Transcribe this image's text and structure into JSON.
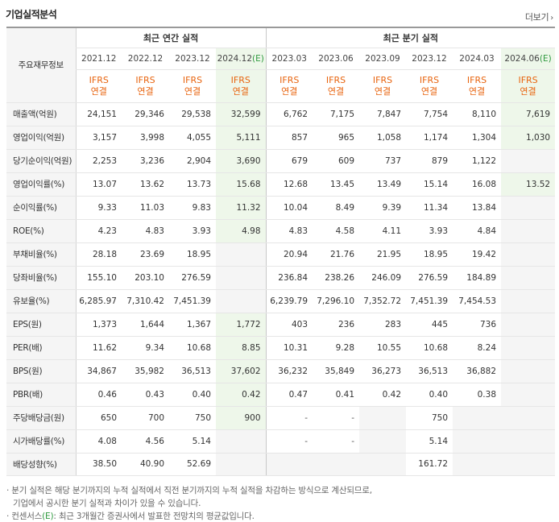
{
  "header": {
    "title": "기업실적분석",
    "more_label": "더보기"
  },
  "table": {
    "corner_label": "주요재무정보",
    "annual_group": "최근 연간 실적",
    "quarter_group": "최근 분기 실적",
    "columns": [
      {
        "year": "2021.12",
        "est": ""
      },
      {
        "year": "2022.12",
        "est": ""
      },
      {
        "year": "2023.12",
        "est": ""
      },
      {
        "year": "2024.12",
        "est": "(E)"
      },
      {
        "year": "2023.03",
        "est": ""
      },
      {
        "year": "2023.06",
        "est": ""
      },
      {
        "year": "2023.09",
        "est": ""
      },
      {
        "year": "2023.12",
        "est": ""
      },
      {
        "year": "2024.03",
        "est": ""
      },
      {
        "year": "2024.06",
        "est": "(E)"
      }
    ],
    "ifrs_line1": "IFRS",
    "ifrs_line2": "연결",
    "rows": [
      {
        "label": "매출액(억원)",
        "values": [
          "24,151",
          "29,346",
          "29,538",
          "32,599",
          "6,762",
          "7,175",
          "7,847",
          "7,754",
          "8,110",
          "7,619"
        ]
      },
      {
        "label": "영업이익(억원)",
        "values": [
          "3,157",
          "3,998",
          "4,055",
          "5,111",
          "857",
          "965",
          "1,058",
          "1,174",
          "1,304",
          "1,030"
        ]
      },
      {
        "label": "당기순이익(억원)",
        "values": [
          "2,253",
          "3,236",
          "2,904",
          "3,690",
          "679",
          "609",
          "737",
          "879",
          "1,122",
          ""
        ]
      },
      {
        "label": "영업이익률(%)",
        "values": [
          "13.07",
          "13.62",
          "13.73",
          "15.68",
          "12.68",
          "13.45",
          "13.49",
          "15.14",
          "16.08",
          "13.52"
        ]
      },
      {
        "label": "순이익률(%)",
        "values": [
          "9.33",
          "11.03",
          "9.83",
          "11.32",
          "10.04",
          "8.49",
          "9.39",
          "11.34",
          "13.84",
          ""
        ]
      },
      {
        "label": "ROE(%)",
        "values": [
          "4.23",
          "4.83",
          "3.93",
          "4.98",
          "4.83",
          "4.58",
          "4.11",
          "3.93",
          "4.84",
          ""
        ]
      },
      {
        "label": "부채비율(%)",
        "values": [
          "28.18",
          "23.69",
          "18.95",
          "",
          "20.94",
          "21.76",
          "21.95",
          "18.95",
          "19.42",
          ""
        ]
      },
      {
        "label": "당좌비율(%)",
        "values": [
          "155.10",
          "203.10",
          "276.59",
          "",
          "236.84",
          "238.26",
          "246.09",
          "276.59",
          "184.89",
          ""
        ]
      },
      {
        "label": "유보율(%)",
        "values": [
          "6,285.97",
          "7,310.42",
          "7,451.39",
          "",
          "6,239.79",
          "7,296.10",
          "7,352.72",
          "7,451.39",
          "7,454.53",
          ""
        ]
      },
      {
        "label": "EPS(원)",
        "values": [
          "1,373",
          "1,644",
          "1,367",
          "1,772",
          "403",
          "236",
          "283",
          "445",
          "736",
          ""
        ]
      },
      {
        "label": "PER(배)",
        "values": [
          "11.62",
          "9.34",
          "10.68",
          "8.85",
          "10.31",
          "9.28",
          "10.55",
          "10.68",
          "8.24",
          ""
        ]
      },
      {
        "label": "BPS(원)",
        "values": [
          "34,867",
          "35,982",
          "36,513",
          "37,602",
          "36,232",
          "35,849",
          "36,273",
          "36,513",
          "36,882",
          ""
        ]
      },
      {
        "label": "PBR(배)",
        "values": [
          "0.46",
          "0.43",
          "0.40",
          "0.42",
          "0.47",
          "0.41",
          "0.42",
          "0.40",
          "0.38",
          ""
        ]
      },
      {
        "label": "주당배당금(원)",
        "values": [
          "650",
          "700",
          "750",
          "900",
          "-",
          "-",
          "",
          "750",
          "",
          ""
        ]
      },
      {
        "label": "시가배당률(%)",
        "values": [
          "4.08",
          "4.56",
          "5.14",
          "",
          "-",
          "-",
          "",
          "5.14",
          "",
          ""
        ]
      },
      {
        "label": "배당성향(%)",
        "values": [
          "38.50",
          "40.90",
          "52.69",
          "",
          "",
          "",
          "",
          "161.72",
          "",
          ""
        ]
      }
    ]
  },
  "notes": {
    "line1": "· 분기 실적은 해당 분기까지의 누적 실적에서 직전 분기까지의 누적 실적을 차감하는 방식으로 계산되므로,",
    "line2": "기업에서 공시한 분기 실적과 차이가 있을 수 있습니다.",
    "line3_prefix": "· 컨센서스",
    "line3_mark": "(E)",
    "line3_suffix": ": 최근 3개월간 증권사에서 발표한 전망치의 평균값입니다."
  },
  "colors": {
    "ifrs": "#e8640f",
    "estimate_bg": "#eef7ea",
    "estimate_text": "#2f9a3f",
    "label_bg": "#f5f5f5"
  }
}
